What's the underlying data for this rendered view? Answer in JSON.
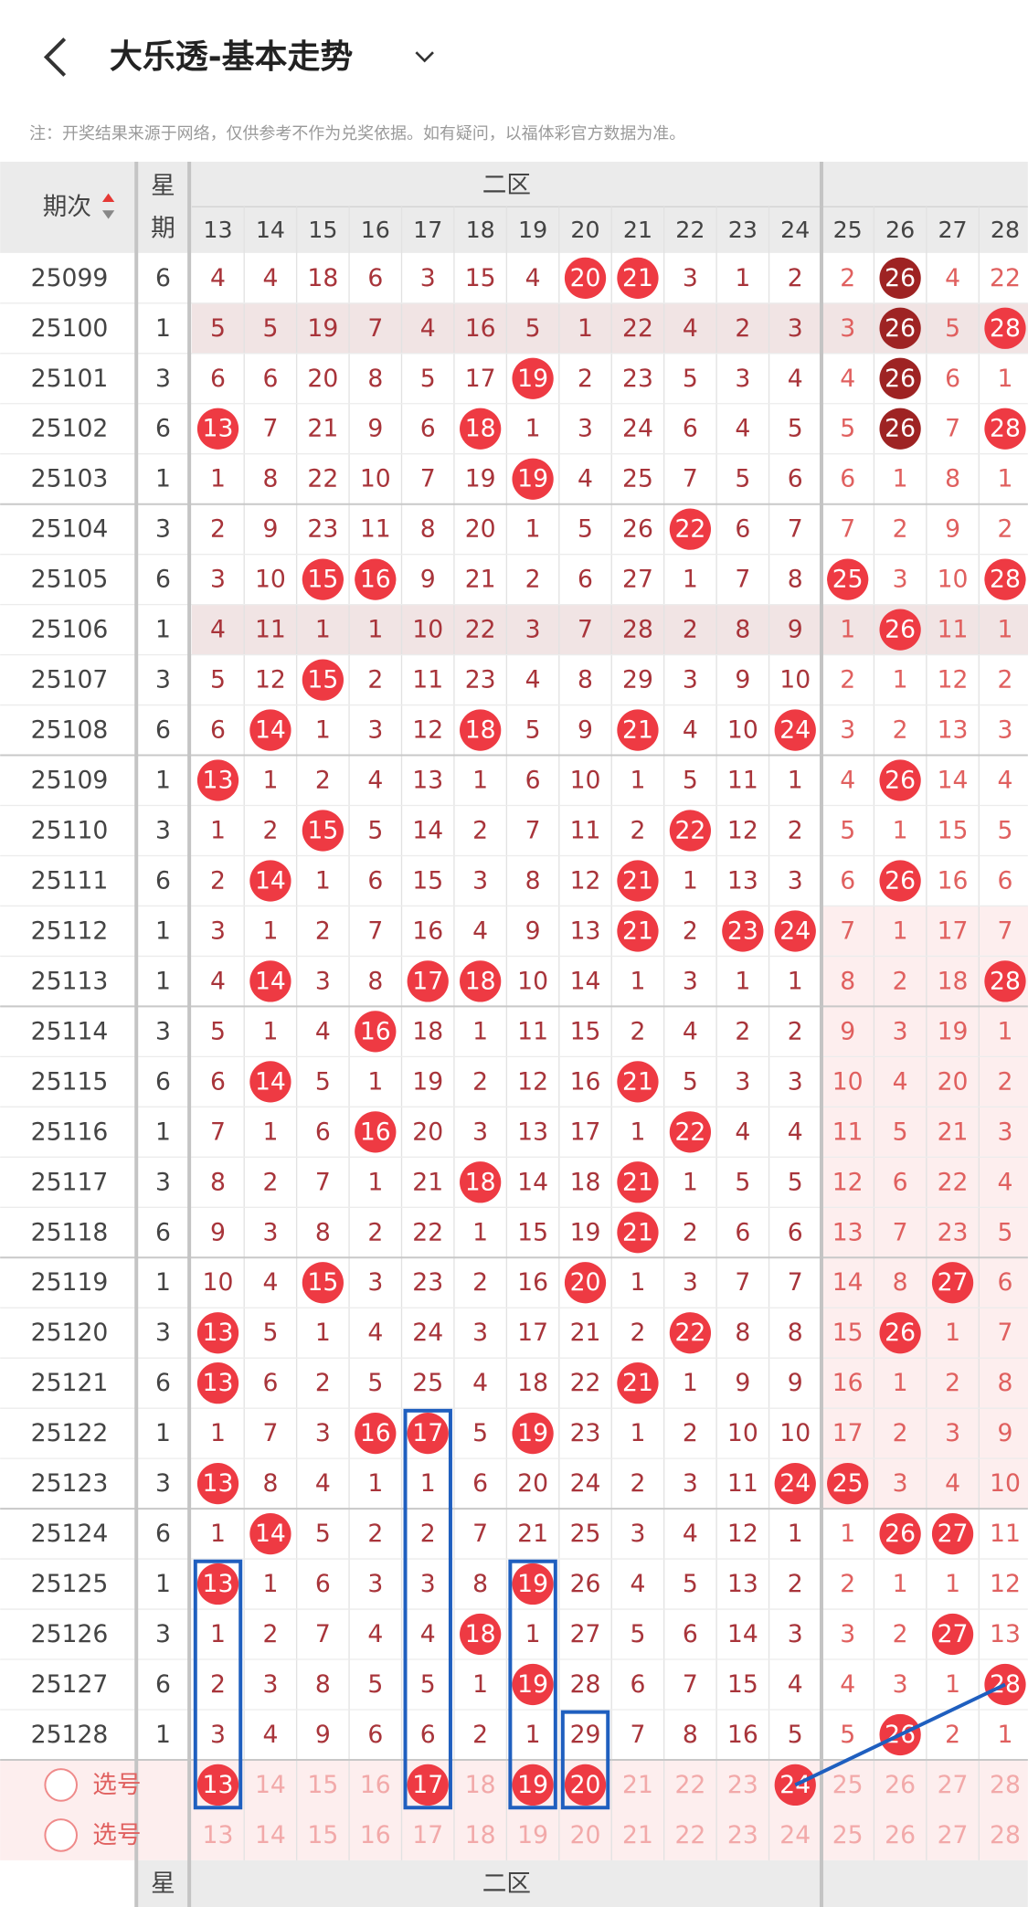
{
  "header": {
    "title": "大乐透-基本走势"
  },
  "note": "注：开奖结果来源于网络，仅供参考不作为兑奖依据。如有疑问，以福体彩官方数据为准。",
  "table": {
    "period_header": "期次",
    "weekday_header_top": "星",
    "weekday_header_bottom": "期",
    "zone_label": "二区",
    "columns": [
      13,
      14,
      15,
      16,
      17,
      18,
      19,
      20,
      21,
      22,
      23,
      24,
      25,
      26,
      27,
      28
    ],
    "rows": [
      {
        "period": 25099,
        "weekday": 6,
        "values": [
          4,
          4,
          18,
          6,
          3,
          15,
          4,
          20,
          21,
          3,
          1,
          2,
          2,
          26,
          4,
          22
        ]
      },
      {
        "period": 25100,
        "weekday": 1,
        "values": [
          5,
          5,
          19,
          7,
          4,
          16,
          5,
          1,
          22,
          4,
          2,
          3,
          3,
          26,
          5,
          28
        ]
      },
      {
        "period": 25101,
        "weekday": 3,
        "values": [
          6,
          6,
          20,
          8,
          5,
          17,
          19,
          2,
          23,
          5,
          3,
          4,
          4,
          26,
          6,
          1
        ]
      },
      {
        "period": 25102,
        "weekday": 6,
        "values": [
          13,
          7,
          21,
          9,
          6,
          18,
          1,
          3,
          24,
          6,
          4,
          5,
          5,
          26,
          7,
          28
        ]
      },
      {
        "period": 25103,
        "weekday": 1,
        "values": [
          1,
          8,
          22,
          10,
          7,
          19,
          19,
          4,
          25,
          7,
          5,
          6,
          6,
          1,
          8,
          1
        ]
      },
      {
        "period": 25104,
        "weekday": 3,
        "values": [
          2,
          9,
          23,
          11,
          8,
          20,
          1,
          5,
          26,
          22,
          6,
          7,
          7,
          2,
          9,
          2
        ]
      },
      {
        "period": 25105,
        "weekday": 6,
        "values": [
          3,
          10,
          15,
          16,
          9,
          21,
          2,
          6,
          27,
          1,
          7,
          8,
          25,
          3,
          10,
          28
        ]
      },
      {
        "period": 25106,
        "weekday": 1,
        "values": [
          4,
          11,
          1,
          1,
          10,
          22,
          3,
          7,
          28,
          2,
          8,
          9,
          1,
          26,
          11,
          1
        ]
      },
      {
        "period": 25107,
        "weekday": 3,
        "values": [
          5,
          12,
          15,
          2,
          11,
          23,
          4,
          8,
          29,
          3,
          9,
          10,
          2,
          1,
          12,
          2
        ]
      },
      {
        "period": 25108,
        "weekday": 6,
        "values": [
          6,
          14,
          1,
          3,
          12,
          18,
          5,
          9,
          21,
          4,
          10,
          24,
          3,
          2,
          13,
          3
        ]
      },
      {
        "period": 25109,
        "weekday": 1,
        "values": [
          13,
          1,
          2,
          4,
          13,
          1,
          6,
          10,
          1,
          5,
          11,
          1,
          4,
          26,
          14,
          4
        ]
      },
      {
        "period": 25110,
        "weekday": 3,
        "values": [
          1,
          2,
          15,
          5,
          14,
          2,
          7,
          11,
          2,
          22,
          12,
          2,
          5,
          1,
          15,
          5
        ]
      },
      {
        "period": 25111,
        "weekday": 6,
        "values": [
          2,
          14,
          1,
          6,
          15,
          3,
          8,
          12,
          21,
          1,
          13,
          3,
          6,
          26,
          16,
          6
        ]
      },
      {
        "period": 25112,
        "weekday": 1,
        "values": [
          3,
          1,
          2,
          7,
          16,
          4,
          9,
          13,
          21,
          2,
          23,
          24,
          7,
          1,
          17,
          7
        ]
      },
      {
        "period": 25113,
        "weekday": 1,
        "values": [
          4,
          14,
          3,
          8,
          17,
          18,
          10,
          14,
          1,
          3,
          1,
          1,
          8,
          2,
          18,
          28
        ]
      },
      {
        "period": 25114,
        "weekday": 3,
        "values": [
          5,
          1,
          4,
          16,
          18,
          1,
          11,
          15,
          2,
          4,
          2,
          2,
          9,
          3,
          19,
          1
        ]
      },
      {
        "period": 25115,
        "weekday": 6,
        "values": [
          6,
          14,
          5,
          1,
          19,
          2,
          12,
          16,
          21,
          5,
          3,
          3,
          10,
          4,
          20,
          2
        ]
      },
      {
        "period": 25116,
        "weekday": 1,
        "values": [
          7,
          1,
          6,
          16,
          20,
          3,
          13,
          17,
          1,
          22,
          4,
          4,
          11,
          5,
          21,
          3
        ]
      },
      {
        "period": 25117,
        "weekday": 3,
        "values": [
          8,
          2,
          7,
          1,
          21,
          18,
          14,
          18,
          21,
          1,
          5,
          5,
          12,
          6,
          22,
          4
        ]
      },
      {
        "period": 25118,
        "weekday": 6,
        "values": [
          9,
          3,
          8,
          2,
          22,
          1,
          15,
          19,
          21,
          2,
          6,
          6,
          13,
          7,
          23,
          5
        ]
      },
      {
        "period": 25119,
        "weekday": 1,
        "values": [
          10,
          4,
          15,
          3,
          23,
          2,
          16,
          20,
          1,
          3,
          7,
          7,
          14,
          8,
          27,
          6
        ]
      },
      {
        "period": 25120,
        "weekday": 3,
        "values": [
          13,
          5,
          1,
          4,
          24,
          3,
          17,
          21,
          2,
          22,
          8,
          8,
          15,
          26,
          1,
          7
        ]
      },
      {
        "period": 25121,
        "weekday": 6,
        "values": [
          13,
          6,
          2,
          5,
          25,
          4,
          18,
          22,
          21,
          1,
          9,
          9,
          16,
          1,
          2,
          8
        ]
      },
      {
        "period": 25122,
        "weekday": 1,
        "values": [
          1,
          7,
          3,
          16,
          17,
          5,
          19,
          23,
          1,
          2,
          10,
          10,
          17,
          2,
          3,
          9
        ]
      },
      {
        "period": 25123,
        "weekday": 3,
        "values": [
          13,
          8,
          4,
          1,
          1,
          6,
          20,
          24,
          2,
          3,
          11,
          24,
          25,
          3,
          4,
          10
        ]
      },
      {
        "period": 25124,
        "weekday": 6,
        "values": [
          1,
          14,
          5,
          2,
          2,
          7,
          21,
          25,
          3,
          4,
          12,
          1,
          1,
          26,
          27,
          11
        ]
      },
      {
        "period": 25125,
        "weekday": 1,
        "values": [
          13,
          1,
          6,
          3,
          3,
          8,
          19,
          26,
          4,
          5,
          13,
          2,
          2,
          1,
          1,
          12
        ]
      },
      {
        "period": 25126,
        "weekday": 3,
        "values": [
          1,
          2,
          7,
          4,
          4,
          18,
          1,
          27,
          5,
          6,
          14,
          3,
          3,
          2,
          27,
          13
        ]
      },
      {
        "period": 25127,
        "weekday": 6,
        "values": [
          2,
          3,
          8,
          5,
          5,
          1,
          19,
          28,
          6,
          7,
          15,
          4,
          4,
          3,
          1,
          28
        ]
      },
      {
        "period": 25128,
        "weekday": 1,
        "values": [
          3,
          4,
          9,
          6,
          6,
          2,
          1,
          29,
          7,
          8,
          16,
          5,
          5,
          26,
          2,
          1
        ]
      }
    ],
    "selection_rows": [
      {
        "label": "选号",
        "numbers": [
          13,
          14,
          15,
          16,
          17,
          18,
          19,
          20,
          21,
          22,
          23,
          24,
          25,
          26,
          27,
          28
        ],
        "selected": [
          13,
          17,
          19,
          20,
          24
        ]
      },
      {
        "label": "选号",
        "numbers": [
          13,
          14,
          15,
          16,
          17,
          18,
          19,
          20,
          21,
          22,
          23,
          24,
          25,
          26,
          27,
          28
        ],
        "selected": []
      }
    ],
    "footer": {
      "weekday": "星",
      "zone": "二区"
    }
  }
}
